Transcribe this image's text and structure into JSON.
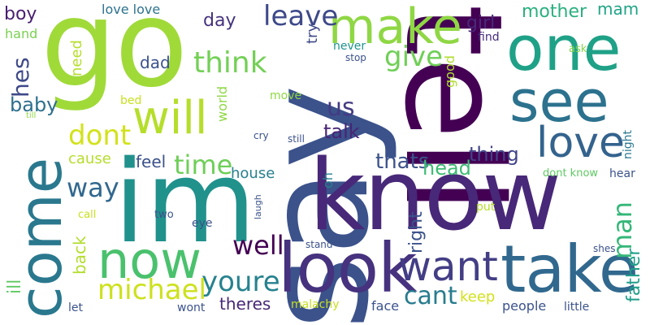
{
  "words": [
    {
      "text": "say",
      "color": "#3b528b"
    },
    {
      "text": "tell",
      "color": "#440154"
    },
    {
      "text": "know",
      "color": "#482878"
    },
    {
      "text": "go",
      "color": "#a0da39"
    },
    {
      "text": "im",
      "color": "#21918c"
    },
    {
      "text": "come",
      "color": "#2a788e"
    },
    {
      "text": "look",
      "color": "#46327e"
    },
    {
      "text": "take",
      "color": "#31688e"
    },
    {
      "text": "one",
      "color": "#1fa187"
    },
    {
      "text": "see",
      "color": "#2c728e"
    },
    {
      "text": "make",
      "color": "#8fd744"
    },
    {
      "text": "now",
      "color": "#4ac16d"
    },
    {
      "text": "will",
      "color": "#b5de2b"
    },
    {
      "text": "love",
      "color": "#33638d"
    },
    {
      "text": "want",
      "color": "#433e85"
    },
    {
      "text": "leave",
      "color": "#3e4989"
    },
    {
      "text": "think",
      "color": "#73d056"
    },
    {
      "text": "give",
      "color": "#70cf57"
    },
    {
      "text": "dont",
      "color": "#d2e21b"
    },
    {
      "text": "time",
      "color": "#6ece58"
    },
    {
      "text": "youre",
      "color": "#26828e"
    },
    {
      "text": "michael",
      "color": "#cde11d"
    },
    {
      "text": "well",
      "color": "#440154"
    },
    {
      "text": "way",
      "color": "#31688e"
    },
    {
      "text": "cant",
      "color": "#287c8e"
    },
    {
      "text": "man",
      "color": "#35b779"
    },
    {
      "text": "mother",
      "color": "#2ab07f"
    },
    {
      "text": "thats",
      "color": "#3b528b"
    },
    {
      "text": "head",
      "color": "#3dbc74"
    },
    {
      "text": "us",
      "color": "#443b84"
    },
    {
      "text": "talk",
      "color": "#482475"
    },
    {
      "text": "thing",
      "color": "#414487"
    },
    {
      "text": "hes",
      "color": "#3e4a89"
    },
    {
      "text": "baby",
      "color": "#2e6f8e"
    },
    {
      "text": "day",
      "color": "#46337e"
    },
    {
      "text": "girl",
      "color": "#482979"
    },
    {
      "text": "boy",
      "color": "#481f70"
    },
    {
      "text": "feel",
      "color": "#3b528b"
    },
    {
      "text": "father",
      "color": "#1f9e89"
    },
    {
      "text": "house",
      "color": "#27808e"
    },
    {
      "text": "theres",
      "color": "#482878"
    },
    {
      "text": "right",
      "color": "#3b528b"
    },
    {
      "text": "back",
      "color": "#b2dd2d"
    },
    {
      "text": "ill",
      "color": "#5ec962"
    },
    {
      "text": "dad",
      "color": "#3b528b"
    },
    {
      "text": "need",
      "color": "#b5de2b"
    },
    {
      "text": "cause",
      "color": "#b5de2b"
    },
    {
      "text": "world",
      "color": "#8fd744"
    },
    {
      "text": "mam",
      "color": "#20a486"
    },
    {
      "text": "love love",
      "color": "#2c728e"
    },
    {
      "text": "hand",
      "color": "#7ad151"
    },
    {
      "text": "try",
      "color": "#3e4989"
    },
    {
      "text": "never",
      "color": "#1f948c"
    },
    {
      "text": "stop",
      "color": "#3b528b"
    },
    {
      "text": "find",
      "color": "#472c7a"
    },
    {
      "text": "good",
      "color": "#b0dd2f"
    },
    {
      "text": "ask",
      "color": "#84d44b"
    },
    {
      "text": "night",
      "color": "#2a788e"
    },
    {
      "text": "bed",
      "color": "#c8e020"
    },
    {
      "text": "move",
      "color": "#8fd744"
    },
    {
      "text": "till",
      "color": "#90d743"
    },
    {
      "text": "cry",
      "color": "#3b528b"
    },
    {
      "text": "still",
      "color": "#3b528b"
    },
    {
      "text": "oh",
      "color": "#27808e"
    },
    {
      "text": "dont know",
      "color": "#5ec962"
    },
    {
      "text": "hear",
      "color": "#3b528b"
    },
    {
      "text": "call",
      "color": "#c8e020"
    },
    {
      "text": "two",
      "color": "#3b528b"
    },
    {
      "text": "eye",
      "color": "#3b528b"
    },
    {
      "text": "laugh",
      "color": "#3b528b"
    },
    {
      "text": "put",
      "color": "#b5de2b"
    },
    {
      "text": "stand",
      "color": "#3b528b"
    },
    {
      "text": "shes",
      "color": "#3b528b"
    },
    {
      "text": "keep",
      "color": "#d2e21b"
    },
    {
      "text": "people",
      "color": "#3b528b"
    },
    {
      "text": "little",
      "color": "#3b528b"
    },
    {
      "text": "malachy",
      "color": "#c8e020"
    },
    {
      "text": "face",
      "color": "#3b528b"
    },
    {
      "text": "wont",
      "color": "#3b528b"
    },
    {
      "text": "let",
      "color": "#3b528b"
    }
  ]
}
